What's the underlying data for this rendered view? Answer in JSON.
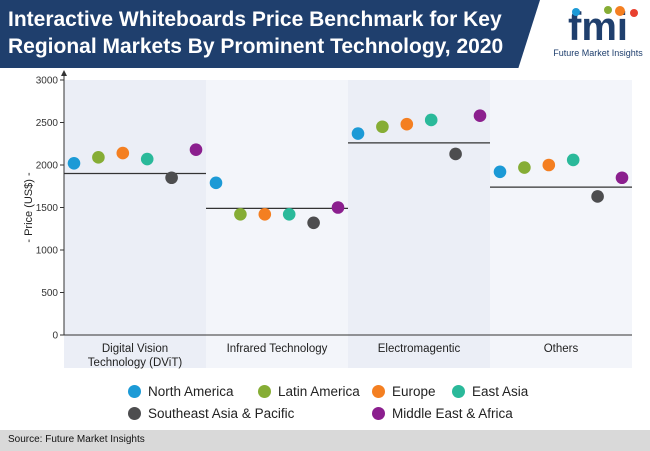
{
  "header": {
    "title_line1": "Interactive Whiteboards Price Benchmark for Key",
    "title_line2": "Regional Markets By Prominent Technology, 2020",
    "logo_letters": "fmi",
    "logo_caption": "Future Market Insights"
  },
  "colors": {
    "banner": "#1f3f6d",
    "panel_shaded": "#ebeef6",
    "panel_plain": "#f3f5fa",
    "north_america": "#1c9ad6",
    "latin_america": "#86ad35",
    "europe": "#f47f21",
    "east_asia": "#2ab99a",
    "southeast_asia_pacific": "#4d4d4f",
    "middle_east_africa": "#8b1f8e"
  },
  "chart_data": {
    "type": "scatter",
    "title": "Interactive Whiteboards Price Benchmark for Key Regional Markets By Prominent Technology, 2020",
    "ylabel": "- Price (US$) -",
    "xlabel": "",
    "ylim": [
      0,
      3000
    ],
    "yticks": [
      0,
      500,
      1000,
      1500,
      2000,
      2500,
      3000
    ],
    "categories": [
      {
        "line1": "Digital Vision",
        "line2": "Technology (DViT)"
      },
      {
        "line1": "Infrared Technology",
        "line2": ""
      },
      {
        "line1": "Electromagentic",
        "line2": ""
      },
      {
        "line1": "Others",
        "line2": ""
      }
    ],
    "benchmark": [
      1900,
      1490,
      2260,
      1740
    ],
    "series": [
      {
        "name": "North America",
        "color_key": "north_america",
        "values": [
          2020,
          1790,
          2370,
          1920
        ]
      },
      {
        "name": "Latin America",
        "color_key": "latin_america",
        "values": [
          2090,
          1420,
          2450,
          1970
        ]
      },
      {
        "name": "Europe",
        "color_key": "europe",
        "values": [
          2140,
          1420,
          2480,
          2000
        ]
      },
      {
        "name": "East Asia",
        "color_key": "east_asia",
        "values": [
          2070,
          1420,
          2530,
          2060
        ]
      },
      {
        "name": "Southeast Asia & Pacific",
        "color_key": "southeast_asia_pacific",
        "values": [
          1850,
          1320,
          2130,
          1630
        ]
      },
      {
        "name": "Middle East & Africa",
        "color_key": "middle_east_africa",
        "values": [
          2180,
          1500,
          2580,
          1850
        ]
      }
    ],
    "legend_position": "bottom"
  },
  "footer": {
    "source": "Source: Future Market Insights"
  }
}
